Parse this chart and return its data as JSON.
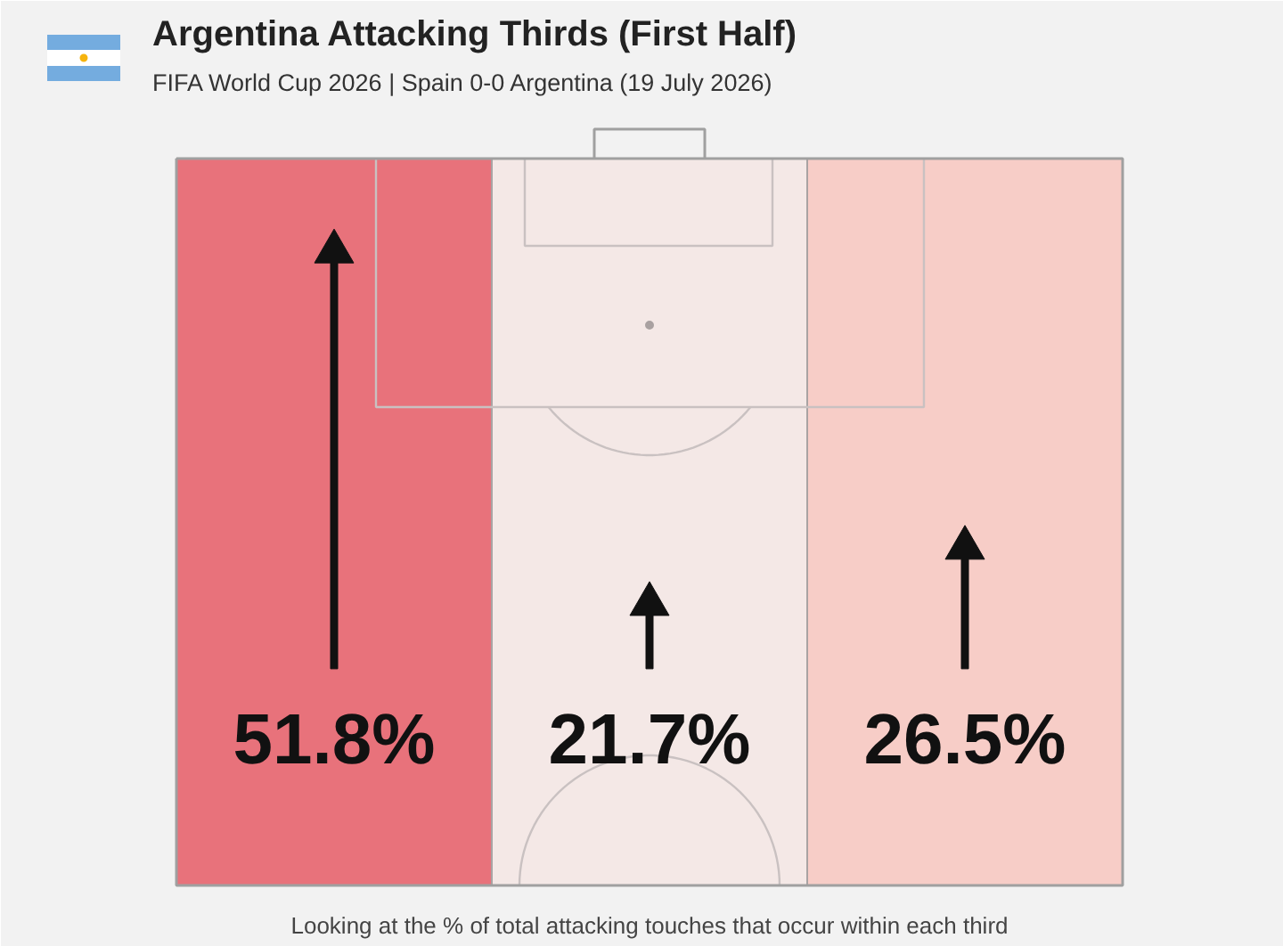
{
  "chart_data": {
    "type": "other",
    "title": "Argentina Attacking Thirds (First Half)",
    "subtitle": "FIFA World Cup 2026 | Spain 0-0 Argentina (19 July 2026)",
    "annotations": [
      "Looking at the % of total attacking touches that occur within each third"
    ],
    "categories": [
      null,
      null,
      null
    ],
    "values": [
      51.8,
      21.7,
      26.5
    ],
    "value_labels": [
      "51.8%",
      "21.7%",
      "26.5%"
    ],
    "colors": [
      "#e8727b",
      "#f4e8e6",
      "#f7cdc7"
    ]
  }
}
